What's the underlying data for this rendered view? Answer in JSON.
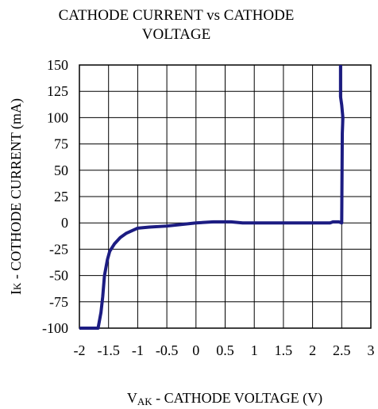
{
  "chart_data": {
    "type": "line",
    "title": "CATHODE CURRENT vs CATHODE VOLTAGE",
    "x_label": {
      "symbol": "V",
      "subscript": "AK",
      "text": " - CATHODE VOLTAGE (V)"
    },
    "y_label": {
      "symbol": "I",
      "subscript": "K",
      "text": " - COTHODE CURRENT (mA)"
    },
    "xlim": [
      -2,
      3
    ],
    "ylim": [
      -100,
      150
    ],
    "xticks": [
      -2,
      -1.5,
      -1,
      -0.5,
      0,
      0.5,
      1,
      1.5,
      2,
      2.5,
      3
    ],
    "yticks": [
      -100,
      -75,
      -50,
      -25,
      0,
      25,
      50,
      75,
      100,
      125,
      150
    ],
    "grid": true,
    "series": [
      {
        "color": "#1c1c82",
        "x": [
          -2,
          -1.85,
          -1.68,
          -1.63,
          -1.6,
          -1.57,
          -1.52,
          -1.48,
          -1.4,
          -1.3,
          -1.2,
          -1,
          -0.8,
          -0.5,
          0,
          0.3,
          0.6,
          0.8,
          1,
          1.5,
          2,
          2.3,
          2.35,
          2.45,
          2.5,
          2.51,
          2.52,
          2.5,
          2.48,
          2.48
        ],
        "values": [
          -100,
          -100,
          -100,
          -85,
          -70,
          -50,
          -35,
          -27,
          -20,
          -14,
          -10,
          -5,
          -4,
          -3,
          0,
          1,
          1,
          0,
          0,
          0,
          0,
          0,
          1,
          1,
          0,
          85,
          100,
          112,
          120,
          150
        ]
      }
    ]
  }
}
